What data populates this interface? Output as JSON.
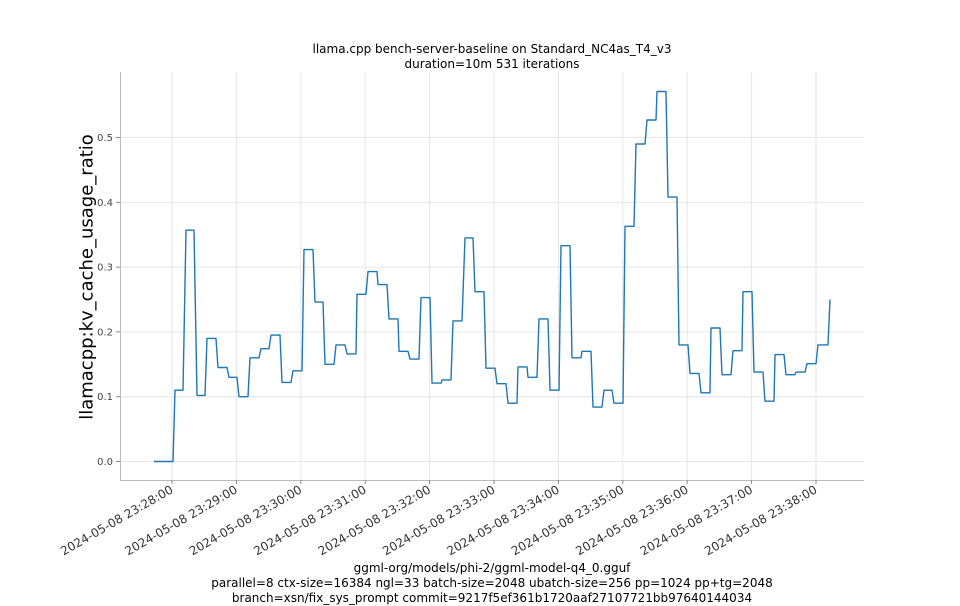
{
  "chart_data": {
    "type": "line",
    "title": "llama.cpp bench-server-baseline on Standard_NC4as_T4_v3",
    "subtitle": "duration=10m 531 iterations",
    "xlabel": "ggml-org/models/phi-2/ggml-model-q4_0.gguf",
    "xlabel_line2": "parallel=8 ctx-size=16384 ngl=33 batch-size=2048 ubatch-size=256 pp=1024 pp+tg=2048",
    "xlabel_line3": "branch=xsn/fix_sys_prompt commit=9217f5ef361b1720aaf27107721bb97640144034",
    "ylabel": "llamacpp:kv_cache_usage_ratio",
    "ylim": [
      -0.028,
      0.6
    ],
    "yticks": [
      "0.0",
      "0.1",
      "0.2",
      "0.3",
      "0.4",
      "0.5"
    ],
    "xticks": [
      "2024-05-08 23:28:00",
      "2024-05-08 23:29:00",
      "2024-05-08 23:30:00",
      "2024-05-08 23:31:00",
      "2024-05-08 23:32:00",
      "2024-05-08 23:33:00",
      "2024-05-08 23:34:00",
      "2024-05-08 23:35:00",
      "2024-05-08 23:36:00",
      "2024-05-08 23:37:00",
      "2024-05-08 23:38:00"
    ],
    "grid": true,
    "legend": null,
    "series": [
      {
        "name": "llamacpp:kv_cache_usage_ratio",
        "color": "#1f77b4",
        "steps": [
          [
            154,
            0.0
          ],
          [
            173,
            0.0
          ],
          [
            175,
            0.11
          ],
          [
            183,
            0.11
          ],
          [
            186,
            0.357
          ],
          [
            194,
            0.357
          ],
          [
            197,
            0.102
          ],
          [
            205,
            0.102
          ],
          [
            207,
            0.19
          ],
          [
            216,
            0.19
          ],
          [
            218,
            0.145
          ],
          [
            227,
            0.145
          ],
          [
            229,
            0.13
          ],
          [
            237,
            0.13
          ],
          [
            239,
            0.1
          ],
          [
            248,
            0.1
          ],
          [
            250,
            0.16
          ],
          [
            259,
            0.16
          ],
          [
            261,
            0.174
          ],
          [
            269,
            0.174
          ],
          [
            271,
            0.195
          ],
          [
            280,
            0.195
          ],
          [
            282,
            0.122
          ],
          [
            291,
            0.122
          ],
          [
            293,
            0.14
          ],
          [
            302,
            0.14
          ],
          [
            304,
            0.327
          ],
          [
            313,
            0.327
          ],
          [
            315,
            0.246
          ],
          [
            323,
            0.246
          ],
          [
            325,
            0.15
          ],
          [
            334,
            0.15
          ],
          [
            336,
            0.18
          ],
          [
            345,
            0.18
          ],
          [
            347,
            0.166
          ],
          [
            356,
            0.166
          ],
          [
            357,
            0.258
          ],
          [
            366,
            0.258
          ],
          [
            368,
            0.293
          ],
          [
            377,
            0.293
          ],
          [
            378,
            0.273
          ],
          [
            387,
            0.273
          ],
          [
            389,
            0.22
          ],
          [
            398,
            0.22
          ],
          [
            399,
            0.17
          ],
          [
            408,
            0.17
          ],
          [
            410,
            0.158
          ],
          [
            419,
            0.158
          ],
          [
            421,
            0.253
          ],
          [
            430,
            0.253
          ],
          [
            432,
            0.121
          ],
          [
            441,
            0.121
          ],
          [
            442,
            0.126
          ],
          [
            451,
            0.126
          ],
          [
            453,
            0.217
          ],
          [
            462,
            0.217
          ],
          [
            465,
            0.345
          ],
          [
            473,
            0.345
          ],
          [
            475,
            0.262
          ],
          [
            484,
            0.262
          ],
          [
            486,
            0.144
          ],
          [
            495,
            0.144
          ],
          [
            497,
            0.12
          ],
          [
            506,
            0.12
          ],
          [
            508,
            0.09
          ],
          [
            517,
            0.09
          ],
          [
            518,
            0.146
          ],
          [
            527,
            0.146
          ],
          [
            528,
            0.13
          ],
          [
            537,
            0.13
          ],
          [
            539,
            0.22
          ],
          [
            548,
            0.22
          ],
          [
            550,
            0.11
          ],
          [
            559,
            0.11
          ],
          [
            561,
            0.333
          ],
          [
            570,
            0.333
          ],
          [
            572,
            0.16
          ],
          [
            581,
            0.16
          ],
          [
            582,
            0.17
          ],
          [
            591,
            0.17
          ],
          [
            593,
            0.084
          ],
          [
            602,
            0.084
          ],
          [
            604,
            0.11
          ],
          [
            612,
            0.11
          ],
          [
            614,
            0.09
          ],
          [
            623,
            0.09
          ],
          [
            625,
            0.363
          ],
          [
            634,
            0.363
          ],
          [
            636,
            0.49
          ],
          [
            645,
            0.49
          ],
          [
            647,
            0.527
          ],
          [
            656,
            0.527
          ],
          [
            657,
            0.571
          ],
          [
            666,
            0.571
          ],
          [
            668,
            0.408
          ],
          [
            677,
            0.408
          ],
          [
            679,
            0.18
          ],
          [
            688,
            0.18
          ],
          [
            690,
            0.136
          ],
          [
            699,
            0.136
          ],
          [
            701,
            0.106
          ],
          [
            710,
            0.106
          ],
          [
            711,
            0.206
          ],
          [
            720,
            0.206
          ],
          [
            722,
            0.134
          ],
          [
            731,
            0.134
          ],
          [
            733,
            0.171
          ],
          [
            742,
            0.171
          ],
          [
            743,
            0.262
          ],
          [
            752,
            0.262
          ],
          [
            754,
            0.138
          ],
          [
            763,
            0.138
          ],
          [
            765,
            0.093
          ],
          [
            774,
            0.093
          ],
          [
            775,
            0.165
          ],
          [
            784,
            0.165
          ],
          [
            786,
            0.134
          ],
          [
            795,
            0.134
          ],
          [
            796,
            0.138
          ],
          [
            805,
            0.138
          ],
          [
            807,
            0.151
          ],
          [
            816,
            0.151
          ],
          [
            818,
            0.18
          ],
          [
            828,
            0.18
          ],
          [
            830,
            0.25
          ]
        ]
      }
    ]
  }
}
